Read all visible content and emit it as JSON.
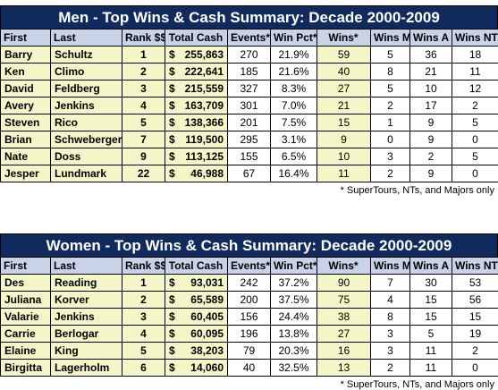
{
  "men": {
    "title": "Men - Top Wins & Cash Summary:  Decade 2000-2009",
    "headers": [
      "First",
      "Last",
      "Rank $$",
      "Total Cash",
      "Events*",
      "Win Pct*",
      "Wins*",
      "Wins M",
      "Wins A",
      "Wins NT"
    ],
    "rows": [
      [
        "Barry",
        "Schultz",
        "1",
        "255,863",
        "270",
        "21.9%",
        "59",
        "5",
        "36",
        "18"
      ],
      [
        "Ken",
        "Climo",
        "2",
        "222,641",
        "185",
        "21.6%",
        "40",
        "8",
        "21",
        "11"
      ],
      [
        "David",
        "Feldberg",
        "3",
        "215,559",
        "327",
        "8.3%",
        "27",
        "5",
        "10",
        "12"
      ],
      [
        "Avery",
        "Jenkins",
        "4",
        "163,709",
        "301",
        "7.0%",
        "21",
        "2",
        "17",
        "2"
      ],
      [
        "Steven",
        "Rico",
        "5",
        "138,366",
        "201",
        "7.5%",
        "15",
        "1",
        "9",
        "5"
      ],
      [
        "Brian",
        "Schweberger",
        "7",
        "119,500",
        "295",
        "3.1%",
        "9",
        "0",
        "9",
        "0"
      ],
      [
        "Nate",
        "Doss",
        "9",
        "113,125",
        "155",
        "6.5%",
        "10",
        "3",
        "2",
        "5"
      ],
      [
        "Jesper",
        "Lundmark",
        "22",
        "46,988",
        "67",
        "16.4%",
        "11",
        "2",
        "9",
        "0"
      ]
    ],
    "footnote": "* SuperTours, NTs, and Majors only"
  },
  "women": {
    "title": "Women - Top Wins & Cash Summary:  Decade 2000-2009",
    "headers": [
      "First",
      "Last",
      "Rank $$",
      "Total Cash",
      "Events*",
      "Win Pct*",
      "Wins*",
      "Wins M",
      "Wins A",
      "Wins NT"
    ],
    "rows": [
      [
        "Des",
        "Reading",
        "1",
        "93,031",
        "242",
        "37.2%",
        "90",
        "7",
        "30",
        "53"
      ],
      [
        "Juliana",
        "Korver",
        "2",
        "65,589",
        "200",
        "37.5%",
        "75",
        "4",
        "15",
        "56"
      ],
      [
        "Valarie",
        "Jenkins",
        "3",
        "60,405",
        "156",
        "24.4%",
        "38",
        "8",
        "15",
        "15"
      ],
      [
        "Carrie",
        "Berlogar",
        "4",
        "60,095",
        "196",
        "13.8%",
        "27",
        "3",
        "5",
        "19"
      ],
      [
        "Elaine",
        "King",
        "5",
        "38,203",
        "79",
        "20.3%",
        "16",
        "3",
        "11",
        "2"
      ],
      [
        "Birgitta",
        "Lagerholm",
        "6",
        "14,060",
        "40",
        "32.5%",
        "13",
        "2",
        "11",
        "0"
      ]
    ],
    "footnote": "* SuperTours, NTs, and Majors only"
  },
  "currency_symbol": "$",
  "colors": {
    "title_bg": "#102a5e",
    "header_bg": "#c9d3e8",
    "highlight_bg": "#f4f6c8"
  }
}
